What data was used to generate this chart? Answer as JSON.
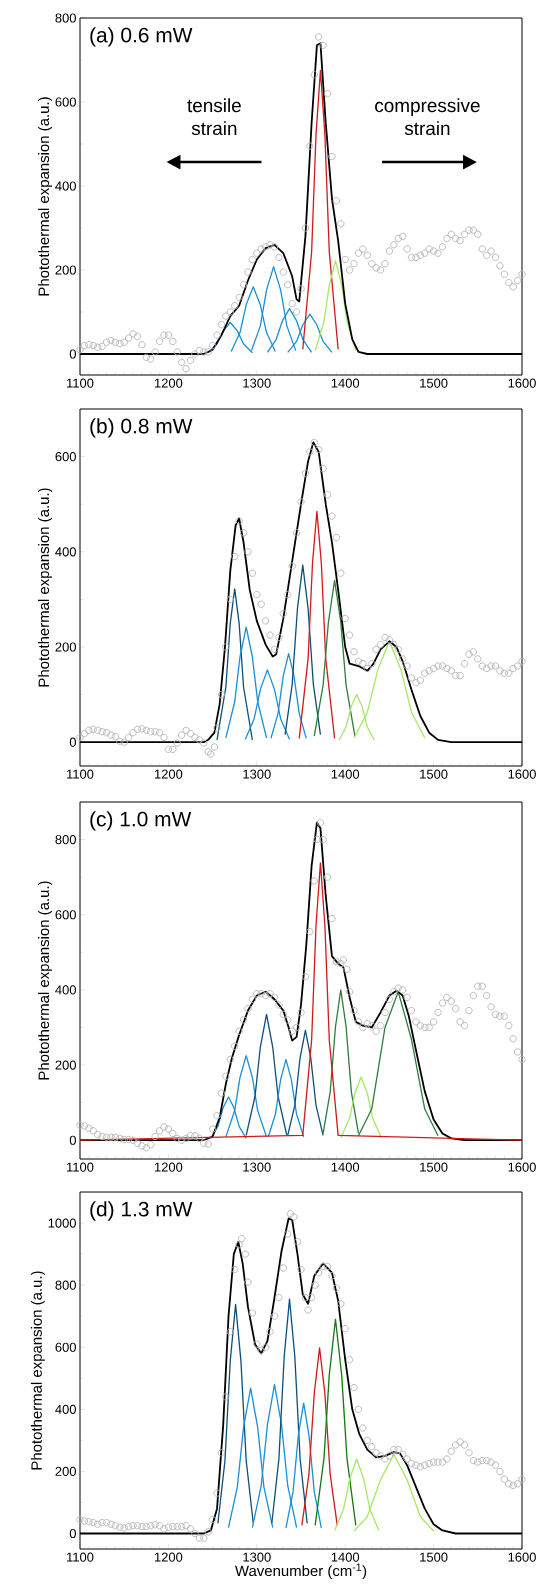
{
  "chart_data": [
    {
      "type": "line",
      "title": "(a) 0.6 mW",
      "ylabel": "Photothermal expansion (a.u.)",
      "xlim": [
        1100,
        1600
      ],
      "xticks": [
        1100,
        1200,
        1300,
        1400,
        1500,
        1600
      ],
      "ylim": [
        -50,
        800
      ],
      "yticks": [
        0,
        200,
        400,
        600,
        800
      ],
      "annotations": [
        "tensile strain",
        "compressive strain"
      ],
      "series": [
        {
          "type": "scatter",
          "marker": "circle",
          "color": "#b4b4b4",
          "x": [
            1100,
            1105,
            1110,
            1115,
            1120,
            1125,
            1130,
            1135,
            1140,
            1145,
            1150,
            1155,
            1160,
            1165,
            1170,
            1175,
            1180,
            1185,
            1190,
            1195,
            1200,
            1205,
            1210,
            1215,
            1220,
            1225,
            1230,
            1235,
            1240,
            1245,
            1250,
            1255,
            1260,
            1265,
            1270,
            1275,
            1280,
            1285,
            1290,
            1295,
            1300,
            1305,
            1310,
            1315,
            1320,
            1325,
            1330,
            1335,
            1340,
            1345,
            1350,
            1355,
            1360,
            1365,
            1370,
            1375,
            1380,
            1385,
            1390,
            1395,
            1400,
            1405,
            1410,
            1415,
            1420,
            1425,
            1430,
            1435,
            1440,
            1445,
            1450,
            1455,
            1460,
            1465,
            1470,
            1475,
            1480,
            1485,
            1490,
            1495,
            1500,
            1505,
            1510,
            1515,
            1520,
            1525,
            1530,
            1535,
            1540,
            1545,
            1550,
            1555,
            1560,
            1565,
            1570,
            1575,
            1580,
            1585,
            1590,
            1595,
            1600
          ],
          "values": [
            10,
            20,
            22,
            20,
            16,
            18,
            28,
            32,
            28,
            25,
            28,
            38,
            48,
            42,
            22,
            -8,
            -12,
            5,
            30,
            45,
            45,
            30,
            5,
            -20,
            -35,
            -15,
            0,
            8,
            5,
            5,
            20,
            45,
            70,
            90,
            100,
            115,
            135,
            165,
            195,
            225,
            240,
            250,
            255,
            260,
            255,
            230,
            195,
            165,
            120,
            100,
            155,
            300,
            495,
            665,
            755,
            735,
            620,
            470,
            365,
            310,
            225,
            200,
            215,
            240,
            250,
            235,
            215,
            205,
            200,
            215,
            245,
            260,
            275,
            280,
            250,
            230,
            230,
            235,
            240,
            250,
            245,
            240,
            255,
            275,
            285,
            275,
            270,
            285,
            295,
            295,
            285,
            250,
            235,
            245,
            230,
            210,
            190,
            170,
            160,
            175,
            190
          ]
        },
        {
          "color": "#1a8fd6",
          "x": [
            1245,
            1255,
            1262,
            1270,
            1278,
            1285,
            1295
          ],
          "values": [
            3,
            24,
            55,
            75,
            55,
            24,
            3
          ]
        },
        {
          "color": "#1a8fd6",
          "x": [
            1271,
            1281,
            1288,
            1296,
            1304,
            1311,
            1321
          ],
          "values": [
            6,
            51,
            117,
            160,
            117,
            51,
            6
          ]
        },
        {
          "color": "#1a8fd6",
          "x": [
            1294,
            1304,
            1311,
            1319,
            1327,
            1334,
            1344
          ],
          "values": [
            8,
            67,
            152,
            208,
            152,
            67,
            8
          ]
        },
        {
          "color": "#1a8fd6",
          "x": [
            1312,
            1322,
            1329,
            1337,
            1345,
            1352,
            1362
          ],
          "values": [
            4,
            35,
            79,
            108,
            79,
            35,
            4
          ]
        },
        {
          "color": "#1a8fd6",
          "x": [
            1335,
            1345,
            1352,
            1360,
            1368,
            1375,
            1385
          ],
          "values": [
            4,
            30,
            69,
            95,
            69,
            30,
            4
          ]
        },
        {
          "color": "#d11a1a",
          "x": [
            1352,
            1362,
            1367,
            1372,
            1377,
            1382,
            1392
          ],
          "values": [
            11,
            243,
            523,
            675,
            523,
            243,
            11
          ]
        },
        {
          "color": "#a6e867",
          "x": [
            1366,
            1376,
            1382,
            1389,
            1396,
            1402,
            1412
          ],
          "values": [
            8,
            78,
            164,
            222,
            164,
            78,
            8
          ]
        },
        {
          "color": "#000000",
          "x": [
            1100,
            1240,
            1250,
            1260,
            1270,
            1280,
            1290,
            1300,
            1310,
            1320,
            1330,
            1340,
            1345,
            1348,
            1355,
            1362,
            1368,
            1372,
            1378,
            1385,
            1392,
            1400,
            1408,
            1415,
            1425,
            1600
          ],
          "values": [
            0,
            0,
            10,
            45,
            90,
            115,
            175,
            225,
            252,
            260,
            240,
            185,
            130,
            125,
            280,
            550,
            735,
            740,
            550,
            370,
            270,
            120,
            35,
            5,
            0,
            0
          ]
        }
      ]
    },
    {
      "type": "line",
      "title": "(b) 0.8 mW",
      "ylabel": "Photothermal expansion (a.u.)",
      "xlim": [
        1100,
        1600
      ],
      "xticks": [
        1100,
        1200,
        1300,
        1400,
        1500,
        1600
      ],
      "ylim": [
        -50,
        700
      ],
      "yticks": [
        0,
        200,
        400,
        600
      ],
      "series": [
        {
          "type": "scatter",
          "marker": "circle",
          "color": "#b4b4b4",
          "x": [
            1100,
            1105,
            1110,
            1115,
            1120,
            1125,
            1130,
            1135,
            1140,
            1145,
            1150,
            1155,
            1160,
            1165,
            1170,
            1175,
            1180,
            1185,
            1190,
            1195,
            1200,
            1205,
            1210,
            1215,
            1220,
            1225,
            1230,
            1235,
            1240,
            1245,
            1248,
            1252,
            1255,
            1260,
            1265,
            1270,
            1275,
            1280,
            1285,
            1290,
            1295,
            1300,
            1305,
            1310,
            1315,
            1320,
            1325,
            1330,
            1335,
            1340,
            1345,
            1350,
            1355,
            1360,
            1365,
            1370,
            1375,
            1380,
            1385,
            1390,
            1395,
            1400,
            1405,
            1410,
            1415,
            1420,
            1425,
            1430,
            1435,
            1440,
            1445,
            1450,
            1455,
            1460,
            1465,
            1470,
            1475,
            1480,
            1485,
            1490,
            1495,
            1500,
            1505,
            1510,
            1515,
            1520,
            1525,
            1530,
            1535,
            1540,
            1545,
            1550,
            1555,
            1560,
            1565,
            1570,
            1575,
            1580,
            1585,
            1590,
            1595,
            1600
          ],
          "values": [
            10,
            18,
            25,
            27,
            25,
            22,
            20,
            15,
            12,
            2,
            0,
            10,
            20,
            27,
            28,
            25,
            22,
            22,
            20,
            10,
            -15,
            -15,
            -2,
            15,
            25,
            18,
            10,
            5,
            -2,
            -20,
            -25,
            -10,
            30,
            100,
            200,
            300,
            390,
            465,
            440,
            400,
            355,
            310,
            290,
            255,
            225,
            195,
            220,
            270,
            310,
            370,
            440,
            505,
            565,
            610,
            630,
            615,
            575,
            520,
            475,
            430,
            355,
            260,
            225,
            190,
            170,
            165,
            155,
            165,
            195,
            205,
            220,
            215,
            205,
            195,
            175,
            160,
            135,
            125,
            130,
            145,
            150,
            155,
            160,
            160,
            155,
            150,
            140,
            140,
            165,
            185,
            190,
            175,
            160,
            155,
            160,
            160,
            150,
            145,
            145,
            155,
            160,
            170
          ]
        },
        {
          "color": "#0d4f7a",
          "x": [
            1255,
            1265,
            1270,
            1275,
            1280,
            1285,
            1295
          ],
          "values": [
            5,
            116,
            250,
            322,
            250,
            116,
            5
          ]
        },
        {
          "color": "#1a8fd6",
          "x": [
            1265,
            1275,
            1281,
            1288,
            1295,
            1301,
            1311
          ],
          "values": [
            9,
            85,
            179,
            242,
            179,
            85,
            9
          ]
        },
        {
          "color": "#1a8fd6",
          "x": [
            1287,
            1297,
            1304,
            1312,
            1320,
            1327,
            1337
          ],
          "values": [
            6,
            49,
            111,
            152,
            111,
            49,
            6
          ]
        },
        {
          "color": "#1a8fd6",
          "x": [
            1316,
            1324,
            1330,
            1336,
            1342,
            1348,
            1356
          ],
          "values": [
            8,
            60,
            140,
            186,
            140,
            60,
            8
          ]
        },
        {
          "color": "#0d4f7a",
          "x": [
            1332,
            1340,
            1346,
            1352,
            1358,
            1364,
            1372
          ],
          "values": [
            16,
            121,
            281,
            372,
            281,
            121,
            16
          ]
        },
        {
          "color": "#d11a1a",
          "x": [
            1348,
            1358,
            1363,
            1368,
            1373,
            1378,
            1388
          ],
          "values": [
            8,
            175,
            376,
            485,
            376,
            175,
            8
          ]
        },
        {
          "color": "#2e7d3e",
          "x": [
            1365,
            1375,
            1381,
            1388,
            1395,
            1401,
            1411
          ],
          "values": [
            13,
            120,
            252,
            340,
            252,
            120,
            13
          ]
        },
        {
          "color": "#a6e867",
          "x": [
            1393,
            1401,
            1407,
            1413,
            1419,
            1425,
            1433
          ],
          "values": [
            4,
            32,
            76,
            100,
            76,
            32,
            4
          ]
        },
        {
          "color": "#a6e867",
          "x": [
            1410,
            1425,
            1437,
            1450,
            1463,
            1475,
            1490
          ],
          "values": [
            9,
            63,
            153,
            212,
            153,
            63,
            9
          ]
        },
        {
          "color": "#000000",
          "x": [
            1100,
            1240,
            1245,
            1252,
            1258,
            1264,
            1270,
            1276,
            1280,
            1285,
            1292,
            1300,
            1310,
            1318,
            1322,
            1330,
            1340,
            1350,
            1358,
            1364,
            1370,
            1378,
            1385,
            1392,
            1400,
            1405,
            1415,
            1425,
            1432,
            1440,
            1450,
            1458,
            1465,
            1475,
            1485,
            1495,
            1505,
            1520,
            1600
          ],
          "values": [
            0,
            0,
            5,
            20,
            80,
            200,
            360,
            455,
            470,
            420,
            320,
            255,
            205,
            180,
            185,
            260,
            380,
            500,
            590,
            630,
            610,
            500,
            420,
            320,
            200,
            165,
            160,
            150,
            165,
            195,
            212,
            200,
            170,
            110,
            55,
            20,
            5,
            0,
            0
          ]
        }
      ]
    },
    {
      "type": "line",
      "title": "(c) 1.0 mW",
      "ylabel": "Photothermal expansion (a.u.)",
      "xlim": [
        1100,
        1600
      ],
      "xticks": [
        1100,
        1200,
        1300,
        1400,
        1500,
        1600
      ],
      "ylim": [
        -50,
        900
      ],
      "yticks": [
        0,
        200,
        400,
        600,
        800
      ],
      "series": [
        {
          "type": "scatter",
          "marker": "circle",
          "color": "#b4b4b4",
          "x": [
            1100,
            1105,
            1110,
            1115,
            1120,
            1125,
            1130,
            1135,
            1140,
            1145,
            1150,
            1155,
            1160,
            1165,
            1170,
            1175,
            1180,
            1185,
            1190,
            1195,
            1200,
            1205,
            1210,
            1215,
            1220,
            1225,
            1230,
            1235,
            1240,
            1245,
            1250,
            1255,
            1260,
            1265,
            1270,
            1275,
            1280,
            1285,
            1290,
            1295,
            1300,
            1305,
            1310,
            1315,
            1320,
            1325,
            1330,
            1335,
            1340,
            1345,
            1350,
            1355,
            1360,
            1365,
            1368,
            1372,
            1375,
            1380,
            1385,
            1390,
            1395,
            1398,
            1402,
            1405,
            1410,
            1415,
            1420,
            1425,
            1430,
            1435,
            1440,
            1445,
            1450,
            1455,
            1460,
            1465,
            1470,
            1475,
            1480,
            1485,
            1490,
            1495,
            1500,
            1505,
            1510,
            1515,
            1520,
            1525,
            1530,
            1535,
            1540,
            1545,
            1550,
            1555,
            1560,
            1565,
            1570,
            1575,
            1580,
            1585,
            1590,
            1595,
            1600
          ],
          "values": [
            40,
            38,
            32,
            25,
            15,
            10,
            8,
            8,
            8,
            5,
            2,
            2,
            0,
            -8,
            -15,
            -20,
            -12,
            10,
            25,
            35,
            30,
            18,
            5,
            0,
            5,
            12,
            12,
            5,
            -8,
            -10,
            30,
            65,
            125,
            170,
            215,
            250,
            290,
            320,
            350,
            375,
            390,
            390,
            385,
            390,
            380,
            360,
            335,
            320,
            290,
            300,
            340,
            435,
            555,
            690,
            800,
            845,
            800,
            700,
            590,
            475,
            470,
            480,
            455,
            395,
            345,
            315,
            300,
            310,
            305,
            290,
            305,
            340,
            375,
            395,
            405,
            400,
            380,
            345,
            315,
            305,
            300,
            300,
            315,
            340,
            365,
            380,
            370,
            350,
            315,
            305,
            345,
            385,
            410,
            410,
            385,
            355,
            335,
            330,
            330,
            305,
            270,
            235,
            215
          ]
        },
        {
          "color": "#1a8fd6",
          "x": [
            1248,
            1256,
            1262,
            1268,
            1274,
            1280,
            1288
          ],
          "values": [
            5,
            37,
            87,
            115,
            87,
            37,
            5
          ]
        },
        {
          "color": "#1a8fd6",
          "x": [
            1265,
            1275,
            1281,
            1288,
            1295,
            1301,
            1311
          ],
          "values": [
            9,
            79,
            167,
            225,
            167,
            79,
            9
          ]
        },
        {
          "color": "#0d4f7a",
          "x": [
            1288,
            1298,
            1304,
            1311,
            1318,
            1324,
            1334
          ],
          "values": [
            13,
            117,
            248,
            335,
            248,
            117,
            13
          ]
        },
        {
          "color": "#1a8fd6",
          "x": [
            1313,
            1321,
            1327,
            1333,
            1339,
            1345,
            1353
          ],
          "values": [
            9,
            69,
            162,
            215,
            162,
            69,
            9
          ]
        },
        {
          "color": "#0d4f7a",
          "x": [
            1335,
            1343,
            1349,
            1355,
            1361,
            1367,
            1375
          ],
          "values": [
            13,
            93,
            220,
            292,
            220,
            93,
            13
          ]
        },
        {
          "color": "#2e7d3e",
          "x": [
            1375,
            1383,
            1389,
            1395,
            1401,
            1407,
            1415
          ],
          "values": [
            18,
            128,
            302,
            400,
            302,
            128,
            18
          ]
        },
        {
          "color": "#a6e867",
          "x": [
            1395,
            1405,
            1411,
            1418,
            1425,
            1431,
            1441
          ],
          "values": [
            6,
            59,
            125,
            168,
            125,
            59,
            6
          ]
        },
        {
          "color": "#2e7d3e",
          "x": [
            1415,
            1430,
            1445,
            1460,
            1475,
            1490,
            1505
          ],
          "values": [
            12,
            83,
            300,
            395,
            268,
            83,
            12
          ]
        },
        {
          "color": "#000000",
          "x": [
            1100,
            1240,
            1250,
            1258,
            1265,
            1272,
            1280,
            1290,
            1300,
            1310,
            1320,
            1330,
            1336,
            1340,
            1345,
            1350,
            1356,
            1362,
            1368,
            1372,
            1378,
            1385,
            1392,
            1398,
            1405,
            1412,
            1420,
            1430,
            1440,
            1450,
            1458,
            1465,
            1472,
            1480,
            1490,
            1500,
            1510,
            1520,
            1535,
            1600
          ],
          "values": [
            0,
            0,
            10,
            60,
            150,
            220,
            280,
            345,
            385,
            395,
            375,
            345,
            300,
            265,
            275,
            360,
            520,
            730,
            845,
            830,
            650,
            490,
            470,
            460,
            380,
            315,
            305,
            300,
            340,
            385,
            398,
            385,
            330,
            240,
            130,
            55,
            18,
            5,
            0,
            0
          ]
        },
        {
          "color": "#d11a1a",
          "x": [
            1100,
            1352,
            1362,
            1367,
            1372,
            1377,
            1382,
            1392,
            1600
          ],
          "values": [
            0,
            13,
            266,
            572,
            738,
            572,
            266,
            13,
            0
          ]
        }
      ]
    },
    {
      "type": "line",
      "title": "(d) 1.3 mW",
      "xlabel": "Wavenumber (cm$^{-1}$)",
      "ylabel": "Photothermal expansion (a.u.)",
      "xlim": [
        1100,
        1600
      ],
      "xticks": [
        1100,
        1200,
        1300,
        1400,
        1500,
        1600
      ],
      "ylim": [
        -50,
        1100
      ],
      "yticks": [
        0,
        200,
        400,
        600,
        800,
        1000
      ],
      "series": [
        {
          "type": "scatter",
          "marker": "circle",
          "color": "#b4b4b4",
          "x": [
            1100,
            1105,
            1110,
            1115,
            1120,
            1125,
            1130,
            1135,
            1140,
            1145,
            1150,
            1155,
            1160,
            1165,
            1170,
            1175,
            1180,
            1185,
            1190,
            1195,
            1200,
            1205,
            1210,
            1215,
            1220,
            1225,
            1230,
            1235,
            1240,
            1245,
            1250,
            1255,
            1260,
            1265,
            1270,
            1275,
            1280,
            1283,
            1287,
            1290,
            1295,
            1300,
            1305,
            1310,
            1315,
            1320,
            1325,
            1330,
            1335,
            1338,
            1342,
            1346,
            1350,
            1355,
            1358,
            1362,
            1366,
            1370,
            1375,
            1380,
            1385,
            1390,
            1395,
            1400,
            1405,
            1410,
            1415,
            1420,
            1425,
            1430,
            1435,
            1440,
            1445,
            1450,
            1455,
            1460,
            1465,
            1470,
            1475,
            1480,
            1485,
            1490,
            1495,
            1500,
            1505,
            1510,
            1515,
            1520,
            1525,
            1530,
            1535,
            1540,
            1545,
            1550,
            1555,
            1560,
            1565,
            1570,
            1575,
            1580,
            1585,
            1590,
            1595,
            1600
          ],
          "values": [
            45,
            40,
            38,
            35,
            30,
            35,
            35,
            30,
            25,
            20,
            18,
            22,
            25,
            25,
            22,
            22,
            25,
            28,
            25,
            15,
            20,
            22,
            22,
            22,
            25,
            15,
            0,
            -15,
            -15,
            5,
            45,
            130,
            260,
            440,
            650,
            850,
            930,
            950,
            900,
            810,
            710,
            610,
            590,
            600,
            650,
            700,
            760,
            855,
            965,
            1030,
            1020,
            940,
            850,
            760,
            720,
            760,
            800,
            840,
            860,
            860,
            830,
            790,
            740,
            660,
            560,
            470,
            400,
            340,
            300,
            280,
            260,
            250,
            240,
            250,
            270,
            270,
            255,
            240,
            225,
            220,
            215,
            220,
            225,
            230,
            230,
            230,
            240,
            265,
            285,
            295,
            285,
            260,
            235,
            230,
            235,
            235,
            230,
            220,
            200,
            175,
            160,
            155,
            160,
            175
          ]
        },
        {
          "color": "#0d4f7a",
          "x": [
            1256,
            1264,
            1270,
            1276,
            1282,
            1288,
            1296
          ],
          "values": [
            33,
            235,
            557,
            738,
            557,
            235,
            33
          ]
        },
        {
          "color": "#1a8fd6",
          "x": [
            1268,
            1278,
            1285,
            1293,
            1301,
            1308,
            1318
          ],
          "values": [
            19,
            150,
            342,
            468,
            342,
            150,
            19
          ]
        },
        {
          "color": "#1a8fd6",
          "x": [
            1295,
            1305,
            1312,
            1320,
            1328,
            1335,
            1345
          ],
          "values": [
            19,
            154,
            350,
            480,
            350,
            154,
            19
          ]
        },
        {
          "color": "#0d4f7a",
          "x": [
            1317,
            1325,
            1331,
            1337,
            1343,
            1349,
            1357
          ],
          "values": [
            33,
            240,
            570,
            755,
            570,
            240,
            33
          ]
        },
        {
          "color": "#1a8fd6",
          "x": [
            1333,
            1341,
            1347,
            1353,
            1359,
            1365,
            1373
          ],
          "values": [
            18,
            134,
            317,
            420,
            317,
            134,
            18
          ]
        },
        {
          "color": "#d11a1a",
          "x": [
            1351,
            1359,
            1365,
            1371,
            1377,
            1383,
            1391
          ],
          "values": [
            26,
            191,
            451,
            598,
            451,
            191,
            26
          ]
        },
        {
          "color": "#117a11",
          "x": [
            1366,
            1376,
            1382,
            1389,
            1396,
            1402,
            1412
          ],
          "values": [
            26,
            242,
            511,
            690,
            511,
            242,
            26
          ]
        },
        {
          "color": "#a6e867",
          "x": [
            1388,
            1398,
            1405,
            1413,
            1421,
            1428,
            1438
          ],
          "values": [
            10,
            77,
            175,
            240,
            175,
            77,
            10
          ]
        },
        {
          "color": "#a6e867",
          "x": [
            1410,
            1425,
            1440,
            1455,
            1470,
            1485,
            1500
          ],
          "values": [
            8,
            54,
            173,
            255,
            173,
            54,
            8
          ]
        },
        {
          "color": "#000000",
          "x": [
            1100,
            1240,
            1248,
            1255,
            1262,
            1268,
            1274,
            1279,
            1284,
            1290,
            1298,
            1305,
            1312,
            1320,
            1328,
            1336,
            1340,
            1346,
            1352,
            1358,
            1365,
            1375,
            1385,
            1392,
            1400,
            1408,
            1416,
            1425,
            1435,
            1445,
            1455,
            1462,
            1470,
            1480,
            1490,
            1500,
            1510,
            1525,
            1600
          ],
          "values": [
            0,
            0,
            10,
            80,
            350,
            700,
            900,
            940,
            870,
            730,
            610,
            580,
            620,
            760,
            910,
            1015,
            1010,
            900,
            770,
            740,
            830,
            870,
            840,
            750,
            560,
            400,
            320,
            270,
            245,
            250,
            262,
            258,
            220,
            150,
            80,
            30,
            10,
            0,
            0
          ]
        }
      ]
    }
  ]
}
